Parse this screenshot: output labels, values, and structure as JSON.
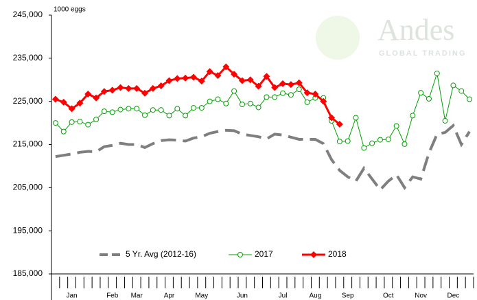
{
  "chart_data": {
    "type": "line",
    "unit_label": "1000 eggs",
    "watermark": "Andes",
    "watermark_sub": "GLOBAL TRADING",
    "categories": [
      null,
      null,
      "Jan",
      null,
      null,
      null,
      null,
      "Feb",
      null,
      null,
      "Mar",
      null,
      null,
      null,
      "Apr",
      null,
      null,
      null,
      "May",
      null,
      null,
      null,
      null,
      "Jun",
      null,
      null,
      null,
      null,
      "Jul",
      null,
      null,
      null,
      "Aug",
      null,
      null,
      null,
      "Sep",
      null,
      null,
      null,
      null,
      "Oct",
      null,
      null,
      null,
      "Nov",
      null,
      null,
      null,
      "Dec",
      null,
      null
    ],
    "ylim": [
      185000,
      245000
    ],
    "yticks": [
      {
        "value": 185000,
        "label": "185,000"
      },
      {
        "value": 195000,
        "label": "195,000"
      },
      {
        "value": 205000,
        "label": "205,000"
      },
      {
        "value": 215000,
        "label": "215,000"
      },
      {
        "value": 225000,
        "label": "225,000"
      },
      {
        "value": 235000,
        "label": "235,000"
      },
      {
        "value": 245000,
        "label": "245,000"
      }
    ],
    "grid": false,
    "series": [
      {
        "name": "5 Yr. Avg (2012-16)",
        "color": "#7f7f7f",
        "dash": true,
        "marker": "none",
        "values": [
          212200,
          212500,
          212800,
          213200,
          213400,
          213300,
          214500,
          214800,
          215300,
          215000,
          215000,
          214300,
          215200,
          215900,
          216100,
          216000,
          215800,
          216500,
          216800,
          217600,
          218000,
          218300,
          218200,
          217400,
          217100,
          216800,
          216300,
          217400,
          217200,
          216700,
          216200,
          216200,
          216200,
          215200,
          211500,
          209000,
          207500,
          206500,
          209500,
          207000,
          204500,
          206500,
          208000,
          205000,
          207500,
          207000,
          213000,
          217400,
          217800,
          219400,
          215000,
          218000
        ]
      },
      {
        "name": "2017",
        "color": "#00a000",
        "dash": false,
        "marker": "circle",
        "values": [
          220000,
          218000,
          220200,
          220300,
          219600,
          220800,
          222700,
          222500,
          223100,
          223300,
          223300,
          221800,
          223000,
          223000,
          221700,
          223300,
          221700,
          223500,
          223500,
          225000,
          225500,
          224500,
          227400,
          224300,
          224500,
          223600,
          226000,
          226000,
          226900,
          226500,
          227800,
          224800,
          225800,
          225800,
          220500,
          215700,
          215800,
          221200,
          214200,
          215300,
          216100,
          216200,
          219300,
          215100,
          221700,
          227000,
          225600,
          231500,
          220500,
          228700,
          227400,
          225500
        ]
      },
      {
        "name": "2018",
        "color": "#ff0000",
        "dash": false,
        "marker": "diamond",
        "values": [
          225500,
          224800,
          223300,
          224600,
          226700,
          225800,
          227300,
          227600,
          228200,
          228000,
          228000,
          226900,
          228000,
          228600,
          229800,
          230300,
          230400,
          230600,
          229700,
          231900,
          231000,
          233000,
          231300,
          229800,
          230000,
          228500,
          230800,
          228200,
          229100,
          228900,
          229300,
          227000,
          226700,
          225000,
          221200,
          219700,
          null,
          null,
          null,
          null,
          null,
          null,
          null,
          null,
          null,
          null,
          null,
          null,
          null,
          null,
          null,
          null
        ]
      }
    ]
  }
}
